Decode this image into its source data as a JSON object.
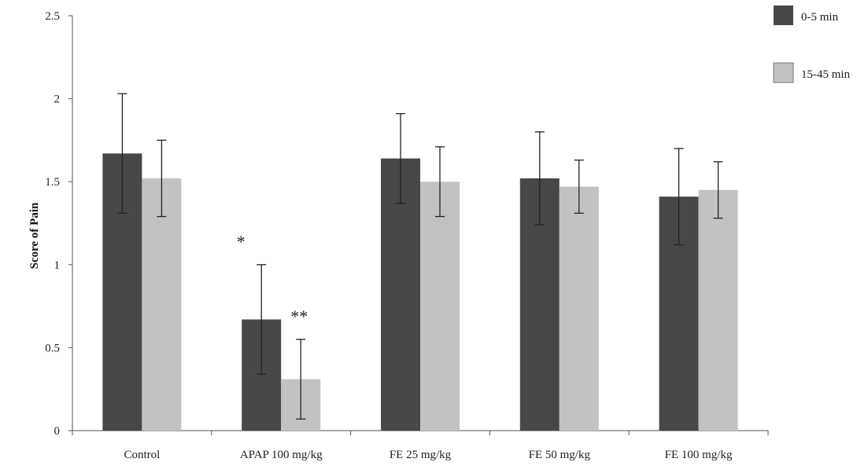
{
  "chart_data": {
    "type": "bar",
    "title": "",
    "xlabel": "",
    "ylabel": "Score of Pain",
    "ylim": [
      0,
      2.5
    ],
    "yticks": [
      "0",
      "0.5",
      "1",
      "1.5",
      "2",
      "2.5"
    ],
    "categories": [
      "Control",
      "APAP 100 mg/kg",
      "FE 25 mg/kg",
      "FE 50 mg/kg",
      "FE 100 mg/kg"
    ],
    "series": [
      {
        "name": "0-5 min",
        "color": "#474747",
        "values": [
          1.67,
          0.67,
          1.64,
          1.52,
          1.41
        ],
        "errors": [
          0.36,
          0.33,
          0.27,
          0.28,
          0.29
        ]
      },
      {
        "name": "15-45 min",
        "color": "#c2c2c2",
        "values": [
          1.52,
          0.31,
          1.5,
          1.47,
          1.45
        ],
        "errors": [
          0.23,
          0.24,
          0.21,
          0.16,
          0.17
        ]
      }
    ],
    "annotations": [
      {
        "category_index": 1,
        "series_index": 0,
        "text": "*"
      },
      {
        "category_index": 1,
        "series_index": 1,
        "text": "**"
      }
    ],
    "grid": false,
    "legend_position": "top-right"
  }
}
